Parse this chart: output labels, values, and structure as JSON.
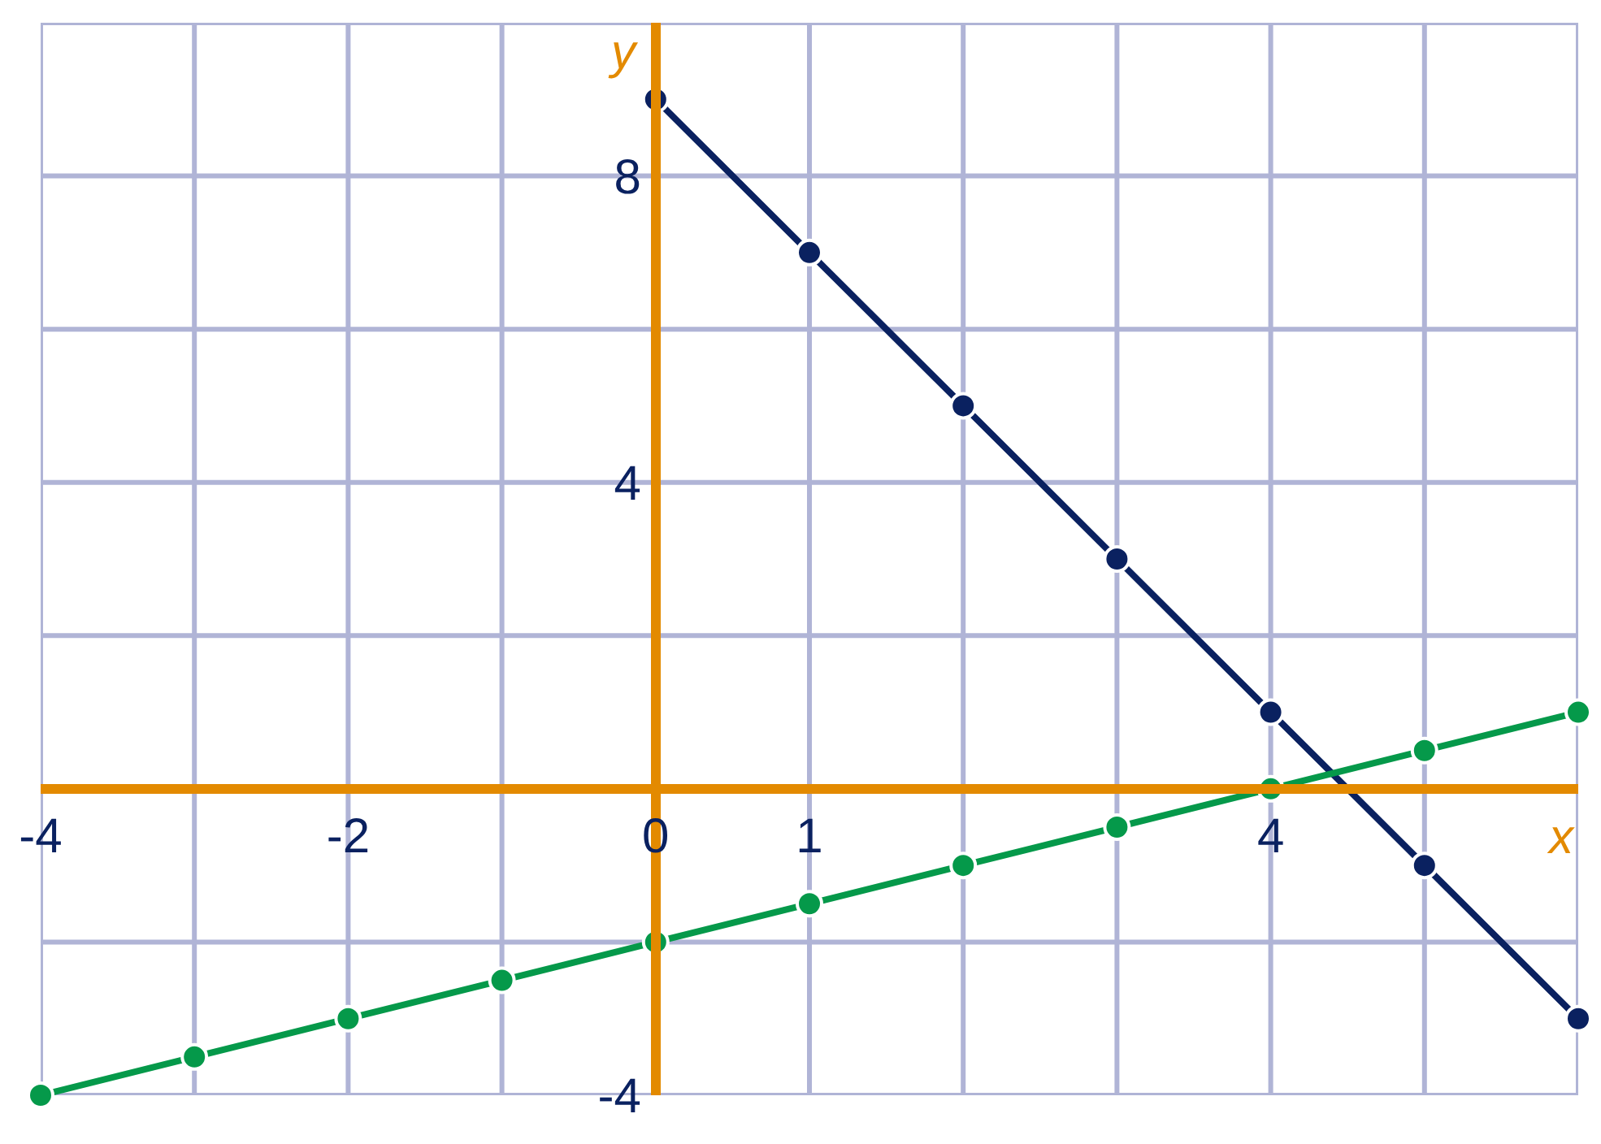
{
  "chart_data": {
    "type": "line",
    "x": [
      -4,
      -3,
      -2,
      -1,
      0,
      1,
      2,
      3,
      4,
      5,
      6
    ],
    "series": [
      {
        "color": "#0a2160",
        "x": [
          0,
          1,
          2,
          3,
          4,
          5,
          6
        ],
        "values": [
          9,
          7,
          5,
          3,
          1,
          -1,
          -3
        ]
      },
      {
        "color": "#05994a",
        "values": [
          -4,
          -3.5,
          -3,
          -2.5,
          -2,
          -1.5,
          -1,
          -0.5,
          0,
          0.5,
          1
        ]
      }
    ],
    "xlabel": "x",
    "ylabel": "y",
    "xlim": [
      -4,
      6
    ],
    "ylim": [
      -4,
      10
    ],
    "xticks": [
      -4,
      -2,
      0,
      1,
      4
    ],
    "yticks": [
      -4,
      4,
      8
    ],
    "grid": true,
    "marker": "circle",
    "line_style": "solid"
  }
}
